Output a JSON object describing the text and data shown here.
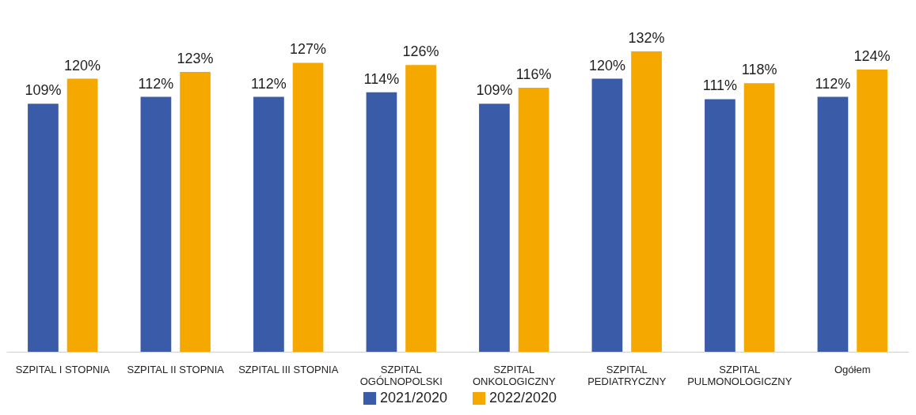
{
  "chart_data": {
    "type": "bar",
    "categories": [
      "SZPITAL I STOPNIA",
      "SZPITAL II STOPNIA",
      "SZPITAL III STOPNIA",
      "SZPITAL\nOGÓLNOPOLSKI",
      "SZPITAL\nONKOLOGICZNY",
      "SZPITAL\nPEDIATRYCZNY",
      "SZPITAL\nPULMONOLOGICZNY",
      "Ogółem"
    ],
    "series": [
      {
        "name": "2021/2020",
        "color": "#3a5ba8",
        "values": [
          109,
          112,
          112,
          114,
          109,
          120,
          111,
          112
        ],
        "value_labels": [
          "109%",
          "112%",
          "112%",
          "114%",
          "109%",
          "120%",
          "111%",
          "112%"
        ]
      },
      {
        "name": "2022/2020",
        "color": "#f5a800",
        "values": [
          120,
          123,
          127,
          126,
          116,
          132,
          118,
          124
        ],
        "value_labels": [
          "120%",
          "123%",
          "127%",
          "126%",
          "116%",
          "132%",
          "118%",
          "124%"
        ]
      }
    ],
    "tick_labels": "x",
    "grid": false,
    "legend": "bottom"
  }
}
